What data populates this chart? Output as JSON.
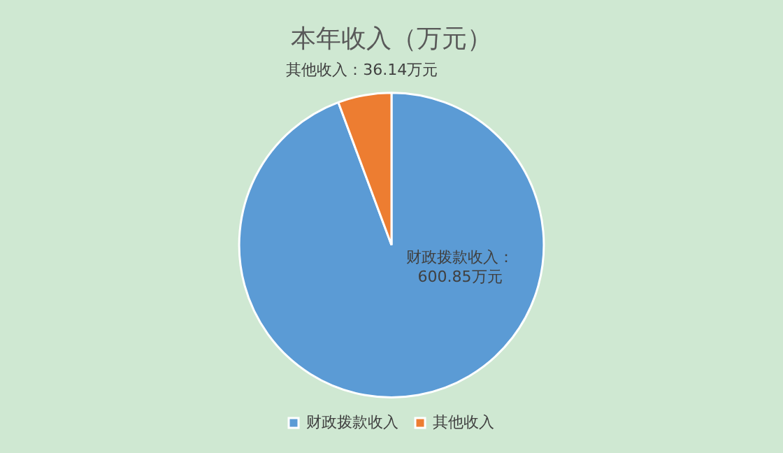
{
  "chart_data": {
    "type": "pie",
    "title": "本年收入（万元）",
    "categories": [
      "财政拨款收入",
      "其他收入"
    ],
    "values": [
      600.85,
      36.14
    ],
    "colors": [
      "#5b9bd5",
      "#ed7d31"
    ],
    "value_labels": [
      "财政拨款收入：600.85万元",
      "其他收入：36.14万元"
    ],
    "legend": "bottom"
  }
}
